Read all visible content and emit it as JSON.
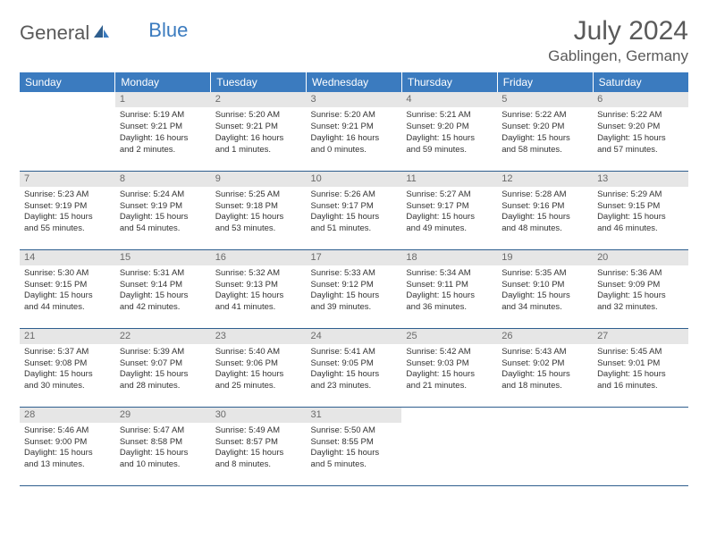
{
  "brand": {
    "general": "General",
    "blue": "Blue"
  },
  "title": "July 2024",
  "location": "Gablingen, Germany",
  "colors": {
    "header_bg": "#3b7bbf",
    "header_text": "#ffffff",
    "daynum_bg": "#e6e6e6",
    "daynum_text": "#6a6a6a",
    "rule": "#2e5e8e",
    "body_text": "#333333",
    "title_text": "#5a5a5a"
  },
  "weekdays": [
    "Sunday",
    "Monday",
    "Tuesday",
    "Wednesday",
    "Thursday",
    "Friday",
    "Saturday"
  ],
  "grid": [
    [
      {
        "n": "",
        "sr": "",
        "ss": "",
        "dl1": "",
        "dl2": ""
      },
      {
        "n": "1",
        "sr": "Sunrise: 5:19 AM",
        "ss": "Sunset: 9:21 PM",
        "dl1": "Daylight: 16 hours",
        "dl2": "and 2 minutes."
      },
      {
        "n": "2",
        "sr": "Sunrise: 5:20 AM",
        "ss": "Sunset: 9:21 PM",
        "dl1": "Daylight: 16 hours",
        "dl2": "and 1 minutes."
      },
      {
        "n": "3",
        "sr": "Sunrise: 5:20 AM",
        "ss": "Sunset: 9:21 PM",
        "dl1": "Daylight: 16 hours",
        "dl2": "and 0 minutes."
      },
      {
        "n": "4",
        "sr": "Sunrise: 5:21 AM",
        "ss": "Sunset: 9:20 PM",
        "dl1": "Daylight: 15 hours",
        "dl2": "and 59 minutes."
      },
      {
        "n": "5",
        "sr": "Sunrise: 5:22 AM",
        "ss": "Sunset: 9:20 PM",
        "dl1": "Daylight: 15 hours",
        "dl2": "and 58 minutes."
      },
      {
        "n": "6",
        "sr": "Sunrise: 5:22 AM",
        "ss": "Sunset: 9:20 PM",
        "dl1": "Daylight: 15 hours",
        "dl2": "and 57 minutes."
      }
    ],
    [
      {
        "n": "7",
        "sr": "Sunrise: 5:23 AM",
        "ss": "Sunset: 9:19 PM",
        "dl1": "Daylight: 15 hours",
        "dl2": "and 55 minutes."
      },
      {
        "n": "8",
        "sr": "Sunrise: 5:24 AM",
        "ss": "Sunset: 9:19 PM",
        "dl1": "Daylight: 15 hours",
        "dl2": "and 54 minutes."
      },
      {
        "n": "9",
        "sr": "Sunrise: 5:25 AM",
        "ss": "Sunset: 9:18 PM",
        "dl1": "Daylight: 15 hours",
        "dl2": "and 53 minutes."
      },
      {
        "n": "10",
        "sr": "Sunrise: 5:26 AM",
        "ss": "Sunset: 9:17 PM",
        "dl1": "Daylight: 15 hours",
        "dl2": "and 51 minutes."
      },
      {
        "n": "11",
        "sr": "Sunrise: 5:27 AM",
        "ss": "Sunset: 9:17 PM",
        "dl1": "Daylight: 15 hours",
        "dl2": "and 49 minutes."
      },
      {
        "n": "12",
        "sr": "Sunrise: 5:28 AM",
        "ss": "Sunset: 9:16 PM",
        "dl1": "Daylight: 15 hours",
        "dl2": "and 48 minutes."
      },
      {
        "n": "13",
        "sr": "Sunrise: 5:29 AM",
        "ss": "Sunset: 9:15 PM",
        "dl1": "Daylight: 15 hours",
        "dl2": "and 46 minutes."
      }
    ],
    [
      {
        "n": "14",
        "sr": "Sunrise: 5:30 AM",
        "ss": "Sunset: 9:15 PM",
        "dl1": "Daylight: 15 hours",
        "dl2": "and 44 minutes."
      },
      {
        "n": "15",
        "sr": "Sunrise: 5:31 AM",
        "ss": "Sunset: 9:14 PM",
        "dl1": "Daylight: 15 hours",
        "dl2": "and 42 minutes."
      },
      {
        "n": "16",
        "sr": "Sunrise: 5:32 AM",
        "ss": "Sunset: 9:13 PM",
        "dl1": "Daylight: 15 hours",
        "dl2": "and 41 minutes."
      },
      {
        "n": "17",
        "sr": "Sunrise: 5:33 AM",
        "ss": "Sunset: 9:12 PM",
        "dl1": "Daylight: 15 hours",
        "dl2": "and 39 minutes."
      },
      {
        "n": "18",
        "sr": "Sunrise: 5:34 AM",
        "ss": "Sunset: 9:11 PM",
        "dl1": "Daylight: 15 hours",
        "dl2": "and 36 minutes."
      },
      {
        "n": "19",
        "sr": "Sunrise: 5:35 AM",
        "ss": "Sunset: 9:10 PM",
        "dl1": "Daylight: 15 hours",
        "dl2": "and 34 minutes."
      },
      {
        "n": "20",
        "sr": "Sunrise: 5:36 AM",
        "ss": "Sunset: 9:09 PM",
        "dl1": "Daylight: 15 hours",
        "dl2": "and 32 minutes."
      }
    ],
    [
      {
        "n": "21",
        "sr": "Sunrise: 5:37 AM",
        "ss": "Sunset: 9:08 PM",
        "dl1": "Daylight: 15 hours",
        "dl2": "and 30 minutes."
      },
      {
        "n": "22",
        "sr": "Sunrise: 5:39 AM",
        "ss": "Sunset: 9:07 PM",
        "dl1": "Daylight: 15 hours",
        "dl2": "and 28 minutes."
      },
      {
        "n": "23",
        "sr": "Sunrise: 5:40 AM",
        "ss": "Sunset: 9:06 PM",
        "dl1": "Daylight: 15 hours",
        "dl2": "and 25 minutes."
      },
      {
        "n": "24",
        "sr": "Sunrise: 5:41 AM",
        "ss": "Sunset: 9:05 PM",
        "dl1": "Daylight: 15 hours",
        "dl2": "and 23 minutes."
      },
      {
        "n": "25",
        "sr": "Sunrise: 5:42 AM",
        "ss": "Sunset: 9:03 PM",
        "dl1": "Daylight: 15 hours",
        "dl2": "and 21 minutes."
      },
      {
        "n": "26",
        "sr": "Sunrise: 5:43 AM",
        "ss": "Sunset: 9:02 PM",
        "dl1": "Daylight: 15 hours",
        "dl2": "and 18 minutes."
      },
      {
        "n": "27",
        "sr": "Sunrise: 5:45 AM",
        "ss": "Sunset: 9:01 PM",
        "dl1": "Daylight: 15 hours",
        "dl2": "and 16 minutes."
      }
    ],
    [
      {
        "n": "28",
        "sr": "Sunrise: 5:46 AM",
        "ss": "Sunset: 9:00 PM",
        "dl1": "Daylight: 15 hours",
        "dl2": "and 13 minutes."
      },
      {
        "n": "29",
        "sr": "Sunrise: 5:47 AM",
        "ss": "Sunset: 8:58 PM",
        "dl1": "Daylight: 15 hours",
        "dl2": "and 10 minutes."
      },
      {
        "n": "30",
        "sr": "Sunrise: 5:49 AM",
        "ss": "Sunset: 8:57 PM",
        "dl1": "Daylight: 15 hours",
        "dl2": "and 8 minutes."
      },
      {
        "n": "31",
        "sr": "Sunrise: 5:50 AM",
        "ss": "Sunset: 8:55 PM",
        "dl1": "Daylight: 15 hours",
        "dl2": "and 5 minutes."
      },
      {
        "n": "",
        "sr": "",
        "ss": "",
        "dl1": "",
        "dl2": ""
      },
      {
        "n": "",
        "sr": "",
        "ss": "",
        "dl1": "",
        "dl2": ""
      },
      {
        "n": "",
        "sr": "",
        "ss": "",
        "dl1": "",
        "dl2": ""
      }
    ]
  ]
}
